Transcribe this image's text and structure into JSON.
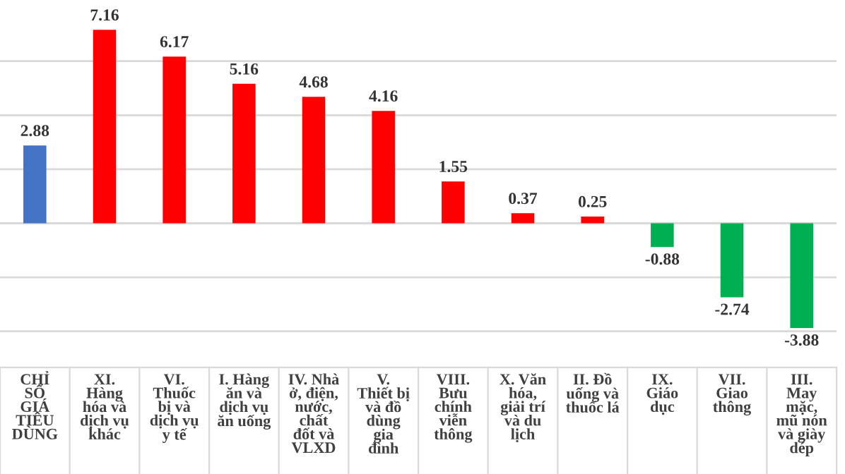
{
  "chart_data": {
    "type": "bar",
    "categories": [
      "CHỈ\nSỐ\nGIÁ\nTIÊU\nDÙNG",
      "XI.\nHàng\nhóa và\ndịch vụ\nkhác",
      "VI.\nThuốc\nbị và\ndịch vụ\ny tế",
      "I. Hàng\năn và\ndịch vụ\năn uống",
      "IV. Nhà\nở, điện,\nnước,\nchất\nđốt và\nVLXD",
      "V.\nThiết bị\nvà đồ\ndùng\ngia\nđình",
      "VIII.\nBưu\nchính\nviễn\nthông",
      "X. Văn\nhóa,\ngiải trí\nvà du\nlịch",
      "II. Đồ\nuống và\nthuốc lá",
      "IX.\nGiáo\ndục",
      "VII.\nGiao\nthông",
      "III.\nMay\nmặc,\nmũ nón\nvà giày\ndép"
    ],
    "values": [
      2.88,
      7.16,
      6.17,
      5.16,
      4.68,
      4.16,
      1.55,
      0.37,
      0.25,
      -0.88,
      -2.74,
      -3.88
    ],
    "colors": [
      "#4472c4",
      "#ff0000",
      "#ff0000",
      "#ff0000",
      "#ff0000",
      "#ff0000",
      "#ff0000",
      "#ff0000",
      "#ff0000",
      "#00b050",
      "#00b050",
      "#00b050"
    ],
    "data_labels": true,
    "yticks": [
      {
        "value": -4,
        "label": null
      },
      {
        "value": -2,
        "label": null
      },
      {
        "value": 0,
        "label": null
      },
      {
        "value": 2,
        "label": null
      },
      {
        "value": 4,
        "label": null
      },
      {
        "value": 6,
        "label": null
      }
    ],
    "grid": "y"
  }
}
